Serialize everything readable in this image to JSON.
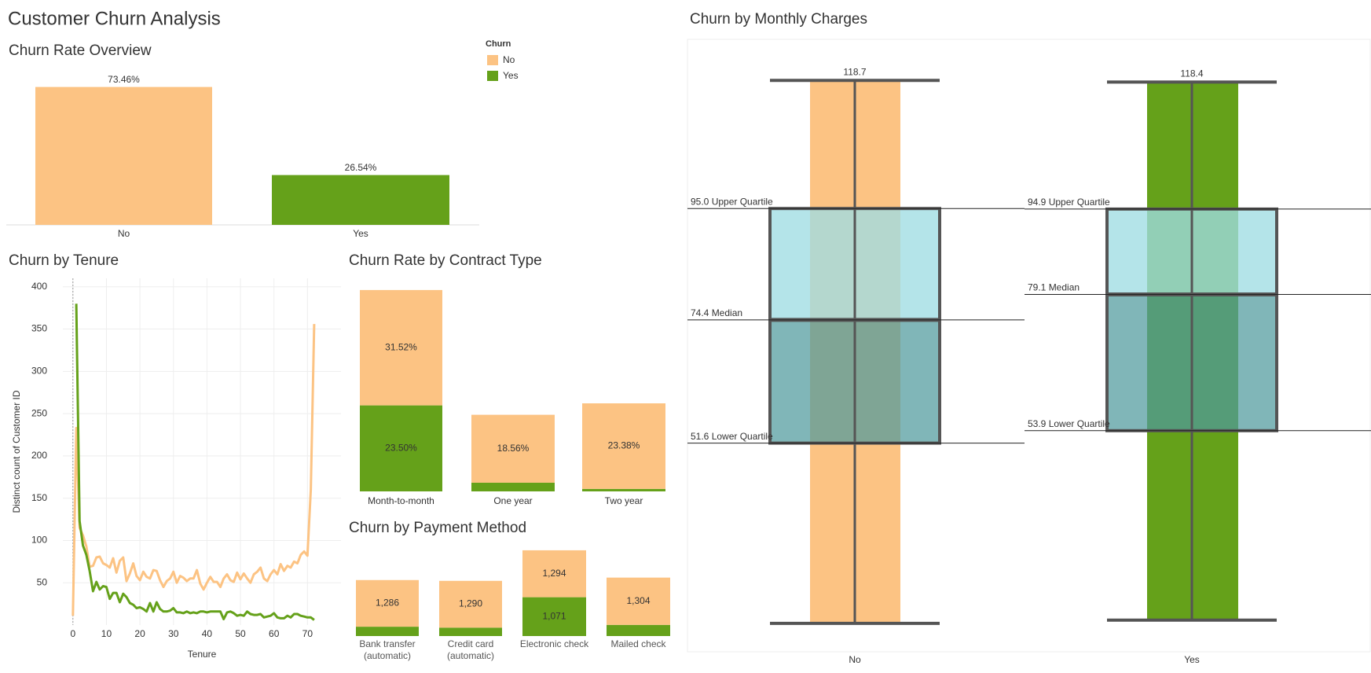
{
  "title": "Customer Churn Analysis",
  "chart_data": [
    {
      "type": "bar",
      "title": "Churn Rate Overview",
      "legend_title": "Churn",
      "categories": [
        "No",
        "Yes"
      ],
      "colors": [
        "#fcc383",
        "#65a11a"
      ],
      "values": [
        73.46,
        26.54
      ],
      "value_labels": [
        "73.46%",
        "26.54%"
      ],
      "ylim": [
        0,
        80
      ]
    },
    {
      "type": "line",
      "title": "Churn by Tenure",
      "xlabel": "Tenure",
      "ylabel": "Distinct count of Customer ID",
      "x": [
        0,
        1,
        2,
        3,
        4,
        5,
        6,
        7,
        8,
        9,
        10,
        11,
        12,
        13,
        14,
        15,
        16,
        17,
        18,
        19,
        20,
        21,
        22,
        23,
        24,
        25,
        26,
        27,
        28,
        29,
        30,
        31,
        32,
        33,
        34,
        35,
        36,
        37,
        38,
        39,
        40,
        41,
        42,
        43,
        44,
        45,
        46,
        47,
        48,
        49,
        50,
        51,
        52,
        53,
        54,
        55,
        56,
        57,
        58,
        59,
        60,
        61,
        62,
        63,
        64,
        65,
        66,
        67,
        68,
        69,
        70,
        71,
        72
      ],
      "series": [
        {
          "color": "#fcc383",
          "values": [
            11,
            233,
            115,
            106,
            93,
            69,
            70,
            80,
            81,
            73,
            71,
            68,
            79,
            62,
            76,
            80,
            52,
            61,
            73,
            58,
            53,
            63,
            57,
            55,
            65,
            64,
            53,
            45,
            52,
            55,
            63,
            50,
            58,
            56,
            52,
            55,
            55,
            65,
            49,
            42,
            50,
            57,
            51,
            51,
            45,
            55,
            60,
            53,
            51,
            62,
            54,
            61,
            55,
            50,
            60,
            63,
            68,
            55,
            52,
            60,
            65,
            60,
            72,
            64,
            70,
            68,
            75,
            73,
            83,
            87,
            82,
            160,
            356
          ]
        },
        {
          "color": "#65a11a",
          "values": [
            null,
            380,
            123,
            94,
            83,
            64,
            40,
            51,
            42,
            46,
            45,
            31,
            38,
            38,
            27,
            37,
            33,
            26,
            24,
            20,
            21,
            19,
            16,
            26,
            16,
            27,
            19,
            16,
            16,
            17,
            20,
            15,
            15,
            14,
            16,
            14,
            15,
            14,
            16,
            16,
            15,
            16,
            16,
            16,
            16,
            7,
            15,
            16,
            14,
            11,
            12,
            11,
            16,
            13,
            12,
            12,
            13,
            9,
            10,
            11,
            14,
            9,
            8,
            8,
            11,
            9,
            13,
            13,
            11,
            10,
            9,
            9,
            6
          ]
        }
      ],
      "xlim": [
        -3,
        80
      ],
      "xticks": [
        0,
        10,
        20,
        30,
        40,
        50,
        60,
        70
      ],
      "ylim": [
        0,
        410
      ],
      "yticks": [
        50,
        100,
        150,
        200,
        250,
        300,
        350,
        400
      ],
      "grid": true
    },
    {
      "type": "stacked_bar",
      "title": "Churn Rate by Contract Type",
      "categories": [
        "Month-to-month",
        "One year",
        "Two year"
      ],
      "series": [
        {
          "color": "#65a11a",
          "values": [
            23.5,
            2.37,
            0.68
          ],
          "value_labels": [
            "23.50%",
            null,
            null
          ]
        },
        {
          "color": "#fcc383",
          "values": [
            31.52,
            18.56,
            23.38
          ],
          "value_labels": [
            "31.52%",
            "18.56%",
            "23.38%"
          ]
        }
      ],
      "ylim": [
        0,
        58
      ]
    },
    {
      "type": "stacked_bar",
      "title": "Churn by Payment Method",
      "categories": [
        "Bank transfer (automatic)",
        "Credit card (automatic)",
        "Electronic check",
        "Mailed check"
      ],
      "series": [
        {
          "color": "#65a11a",
          "values": [
            258,
            232,
            1071,
            308
          ],
          "value_labels": [
            null,
            null,
            "1,071",
            null
          ]
        },
        {
          "color": "#fcc383",
          "values": [
            1286,
            1290,
            1294,
            1304
          ],
          "value_labels": [
            "1,286",
            "1,290",
            "1,294",
            "1,304"
          ]
        }
      ],
      "ylim": [
        0,
        2450
      ]
    },
    {
      "type": "box",
      "title": "Churn by Monthly Charges",
      "categories": [
        "No",
        "Yes"
      ],
      "colors": [
        "#fcc383",
        "#65a11a"
      ],
      "ylim": [
        13,
        126.3
      ],
      "boxes": [
        {
          "max": 118.7,
          "q3": {
            "value": 95.0,
            "label": "95.0 Upper Quartile"
          },
          "median": {
            "value": 74.4,
            "label": "74.4 Median"
          },
          "q1": {
            "value": 51.6,
            "label": "51.6 Lower Quartile"
          },
          "min": 18.25
        },
        {
          "max": 118.4,
          "q3": {
            "value": 94.9,
            "label": "94.9 Upper Quartile"
          },
          "median": {
            "value": 79.1,
            "label": "79.1 Median"
          },
          "q1": {
            "value": 53.9,
            "label": "53.9 Lower Quartile"
          },
          "min": 18.85
        }
      ]
    }
  ]
}
